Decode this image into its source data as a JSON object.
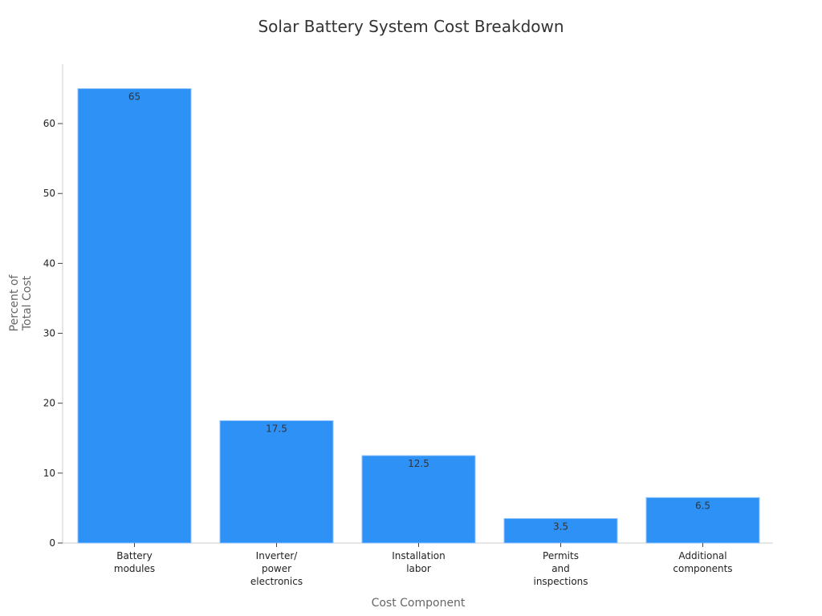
{
  "chart_data": {
    "type": "bar",
    "title": "Solar Battery System Cost Breakdown",
    "xlabel": "Cost Component",
    "ylabel": "Percent of\nTotal Cost",
    "categories": [
      "Battery\nmodules",
      "Inverter/\npower\nelectronics",
      "Installation\nlabor",
      "Permits\nand\ninspections",
      "Additional\ncomponents"
    ],
    "values": [
      65,
      17.5,
      12.5,
      3.5,
      6.5
    ],
    "data_labels": [
      "65",
      "17.5",
      "12.5",
      "3.5",
      "6.5"
    ],
    "ylim": [
      0,
      68.5
    ],
    "yticks": [
      0,
      10,
      20,
      30,
      40,
      50,
      60
    ],
    "grid": false,
    "legend": "none",
    "colors": {
      "bar": "#2e91f5",
      "bar_edge": "#8fc3ff"
    }
  }
}
